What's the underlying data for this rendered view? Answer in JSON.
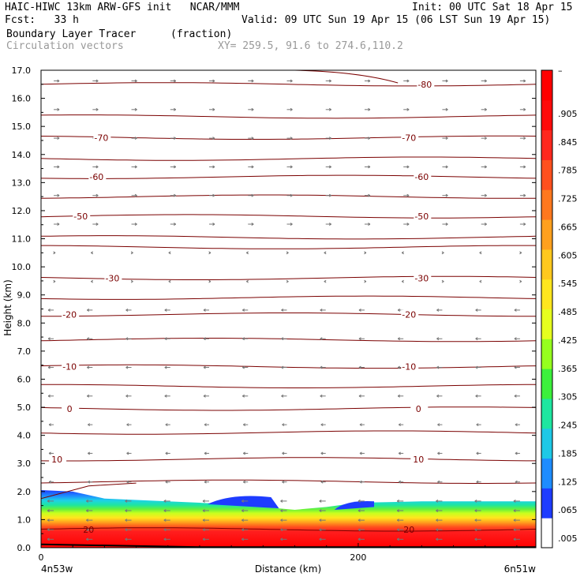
{
  "header": {
    "line1_left": "HAIC-HIWC 13km ARW-GFS init   NCAR/MMM",
    "line1_right": "Init: 00 UTC Sat 18 Apr 15",
    "line2_left": "Fcst:   33 h",
    "line2_right": "Valid: 09 UTC Sun 19 Apr 15 (06 LST Sun 19 Apr 15)",
    "field1": "Boundary Layer Tracer",
    "field1_units": "(fraction)",
    "field2": "Circulation vectors",
    "xy_info": "XY= 259.5, 91.6 to 274.6,110.2"
  },
  "chart_data": {
    "type": "heatmap",
    "xlabel": "Distance (km)",
    "ylabel": "Height (km)",
    "x_ticks": [
      "0",
      "200"
    ],
    "x_tick_values": [
      0,
      200
    ],
    "xlim": [
      0,
      312
    ],
    "x_end_labels": {
      "left": "4n53w",
      "right": "6n51w"
    },
    "ylim": [
      0,
      17
    ],
    "y_ticks": [
      "0.0",
      "1.0",
      "2.0",
      "3.0",
      "4.0",
      "5.0",
      "6.0",
      "7.0",
      "8.0",
      "9.0",
      "10.0",
      "11.0",
      "12.0",
      "13.0",
      "14.0",
      "15.0",
      "16.0",
      "17.0"
    ],
    "colorbar": {
      "labels": [
        ".005",
        ".065",
        ".125",
        ".185",
        ".245",
        ".305",
        ".365",
        ".425",
        ".485",
        ".545",
        ".605",
        ".665",
        ".725",
        ".785",
        ".845",
        ".905",
        "–"
      ],
      "colors": [
        "#ffffff",
        "#1e3cff",
        "#1e6eff",
        "#1ea0ff",
        "#1ed2e6",
        "#1ee6a0",
        "#1ee63c",
        "#78ff1e",
        "#c8ff1e",
        "#f0ff1e",
        "#ffe61e",
        "#ffc81e",
        "#ffa01e",
        "#ff781e",
        "#ff501e",
        "#ff281e",
        "#ff0000"
      ]
    },
    "tracer_top_km": [
      [
        0,
        2.05
      ],
      [
        20,
        2.0
      ],
      [
        40,
        1.75
      ],
      [
        80,
        1.65
      ],
      [
        100,
        1.6
      ],
      [
        120,
        1.55
      ],
      [
        140,
        1.45
      ],
      [
        160,
        1.35
      ],
      [
        180,
        1.45
      ],
      [
        200,
        1.6
      ],
      [
        240,
        1.65
      ],
      [
        280,
        1.65
      ],
      [
        312,
        1.65
      ]
    ],
    "contour_label_values": [
      "-80",
      "-70",
      "-70",
      "-60",
      "-60",
      "-50",
      "-50",
      "-30",
      "-30",
      "-20",
      "-20",
      "-10",
      "-10",
      "0",
      "0",
      "10",
      "10",
      "20",
      "20"
    ],
    "contours": [
      {
        "label": "-80",
        "y": 16.5,
        "label_x": [
          242
        ]
      },
      {
        "label": "",
        "y": 15.35,
        "label_x": []
      },
      {
        "label": "-70",
        "y": 14.6,
        "label_x": [
          38,
          232
        ]
      },
      {
        "label": "",
        "y": 13.85,
        "label_x": []
      },
      {
        "label": "-60",
        "y": 13.2,
        "label_x": [
          35,
          240
        ]
      },
      {
        "label": "",
        "y": 12.5,
        "label_x": []
      },
      {
        "label": "-50",
        "y": 11.8,
        "label_x": [
          25,
          240
        ]
      },
      {
        "label": "",
        "y": 11.05,
        "label_x": []
      },
      {
        "label": "",
        "y": 10.7,
        "label_x": []
      },
      {
        "label": "-30",
        "y": 9.6,
        "label_x": [
          45,
          240
        ]
      },
      {
        "label": "",
        "y": 8.9,
        "label_x": []
      },
      {
        "label": "-20",
        "y": 8.3,
        "label_x": [
          18,
          232
        ]
      },
      {
        "label": "",
        "y": 7.4,
        "label_x": []
      },
      {
        "label": "-10",
        "y": 6.45,
        "label_x": [
          18,
          232
        ]
      },
      {
        "label": "",
        "y": 5.75,
        "label_x": []
      },
      {
        "label": "0",
        "y": 4.95,
        "label_x": [
          18,
          238
        ]
      },
      {
        "label": "",
        "y": 4.1,
        "label_x": []
      },
      {
        "label": "10",
        "y": 3.15,
        "label_x": [
          10,
          238
        ]
      },
      {
        "label": "",
        "y": 2.35,
        "label_x": []
      },
      {
        "label": "20",
        "y": 0.65,
        "label_x": [
          30,
          232
        ]
      }
    ],
    "vectors": "circulation vectors, weak easterly aloft and westward near surface",
    "grid": false,
    "legend": "colorbar-right"
  }
}
